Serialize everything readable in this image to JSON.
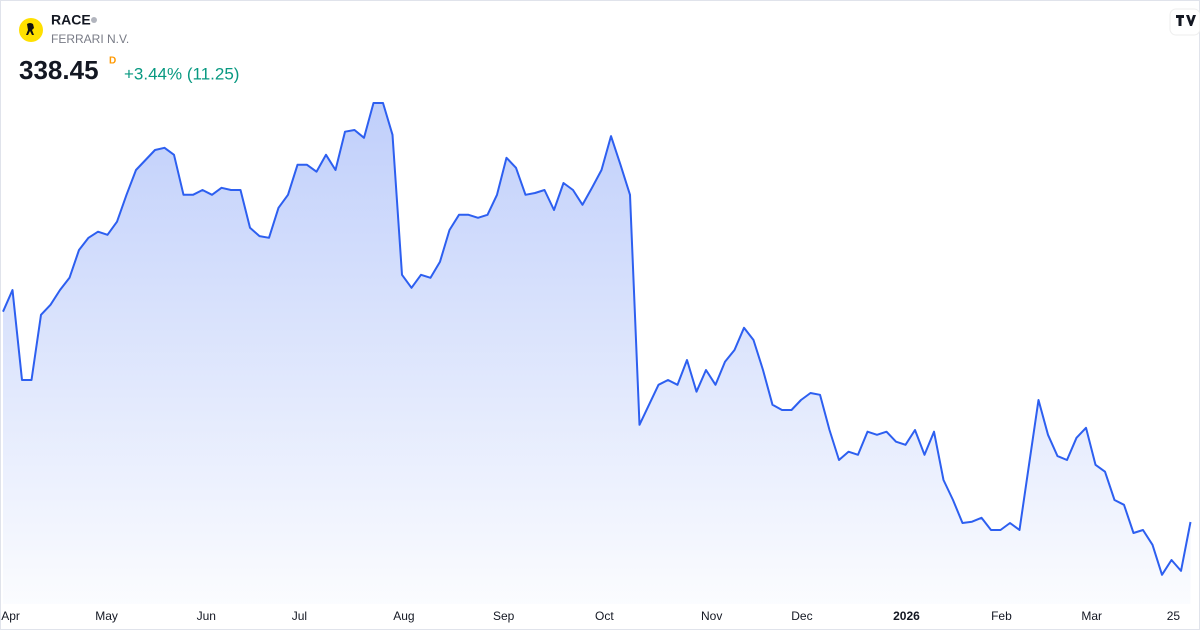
{
  "header": {
    "symbol": "RACE",
    "name": "FERRARI N.V.",
    "price": 338.45,
    "badge": "D",
    "change": "+3.44% (11.25)"
  },
  "chart_data": {
    "type": "area",
    "color": "#2d5ff0",
    "values": [
      386.8,
      391.8,
      371.1,
      371.1,
      386.1,
      388.4,
      391.8,
      394.6,
      401.0,
      403.8,
      405.2,
      404.5,
      407.5,
      413.7,
      419.4,
      421.7,
      424.0,
      424.5,
      422.9,
      413.7,
      413.7,
      414.8,
      413.7,
      415.3,
      414.8,
      414.8,
      406.1,
      404.2,
      403.8,
      410.7,
      413.7,
      420.6,
      420.6,
      419.0,
      422.9,
      419.4,
      428.2,
      428.6,
      426.8,
      434.8,
      434.8,
      427.5,
      395.3,
      392.3,
      395.3,
      394.6,
      398.3,
      405.6,
      409.1,
      409.1,
      408.4,
      409.1,
      413.7,
      422.2,
      419.9,
      413.7,
      414.1,
      414.8,
      410.2,
      416.4,
      414.8,
      411.4,
      415.3,
      419.4,
      427.2,
      420.6,
      413.7,
      360.8,
      365.4,
      370.0,
      371.1,
      370.0,
      375.7,
      368.4,
      373.4,
      370.0,
      375.3,
      378.0,
      383.1,
      380.3,
      373.4,
      365.4,
      364.2,
      364.2,
      366.5,
      368.1,
      367.7,
      359.6,
      352.7,
      354.6,
      353.9,
      359.2,
      358.5,
      359.2,
      356.9,
      356.2,
      359.6,
      353.9,
      359.2,
      348.1,
      343.5,
      338.2,
      338.5,
      339.4,
      336.6,
      336.6,
      338.2,
      336.6,
      351.6,
      366.5,
      358.5,
      353.6,
      352.7,
      357.8,
      360.1,
      351.6,
      350.0,
      343.5,
      342.4,
      335.9,
      336.6,
      333.2,
      326.3,
      329.7,
      327.2,
      338.45
    ],
    "xlim": [
      0,
      125
    ],
    "ylim": [
      320.5,
      444.7
    ],
    "xticks": [
      {
        "value": 0.8,
        "label": "Apr"
      },
      {
        "value": 10.9,
        "label": "May"
      },
      {
        "value": 21.4,
        "label": "Jun"
      },
      {
        "value": 31.2,
        "label": "Jul"
      },
      {
        "value": 42.2,
        "label": "Aug"
      },
      {
        "value": 52.7,
        "label": "Sep"
      },
      {
        "value": 63.3,
        "label": "Oct"
      },
      {
        "value": 74.6,
        "label": "Nov"
      },
      {
        "value": 84.1,
        "label": "Dec"
      },
      {
        "value": 95.1,
        "label": "2026",
        "bold": true
      },
      {
        "value": 105.1,
        "label": "Feb"
      },
      {
        "value": 114.6,
        "label": "Mar"
      },
      {
        "value": 123.2,
        "label": "25"
      }
    ]
  }
}
